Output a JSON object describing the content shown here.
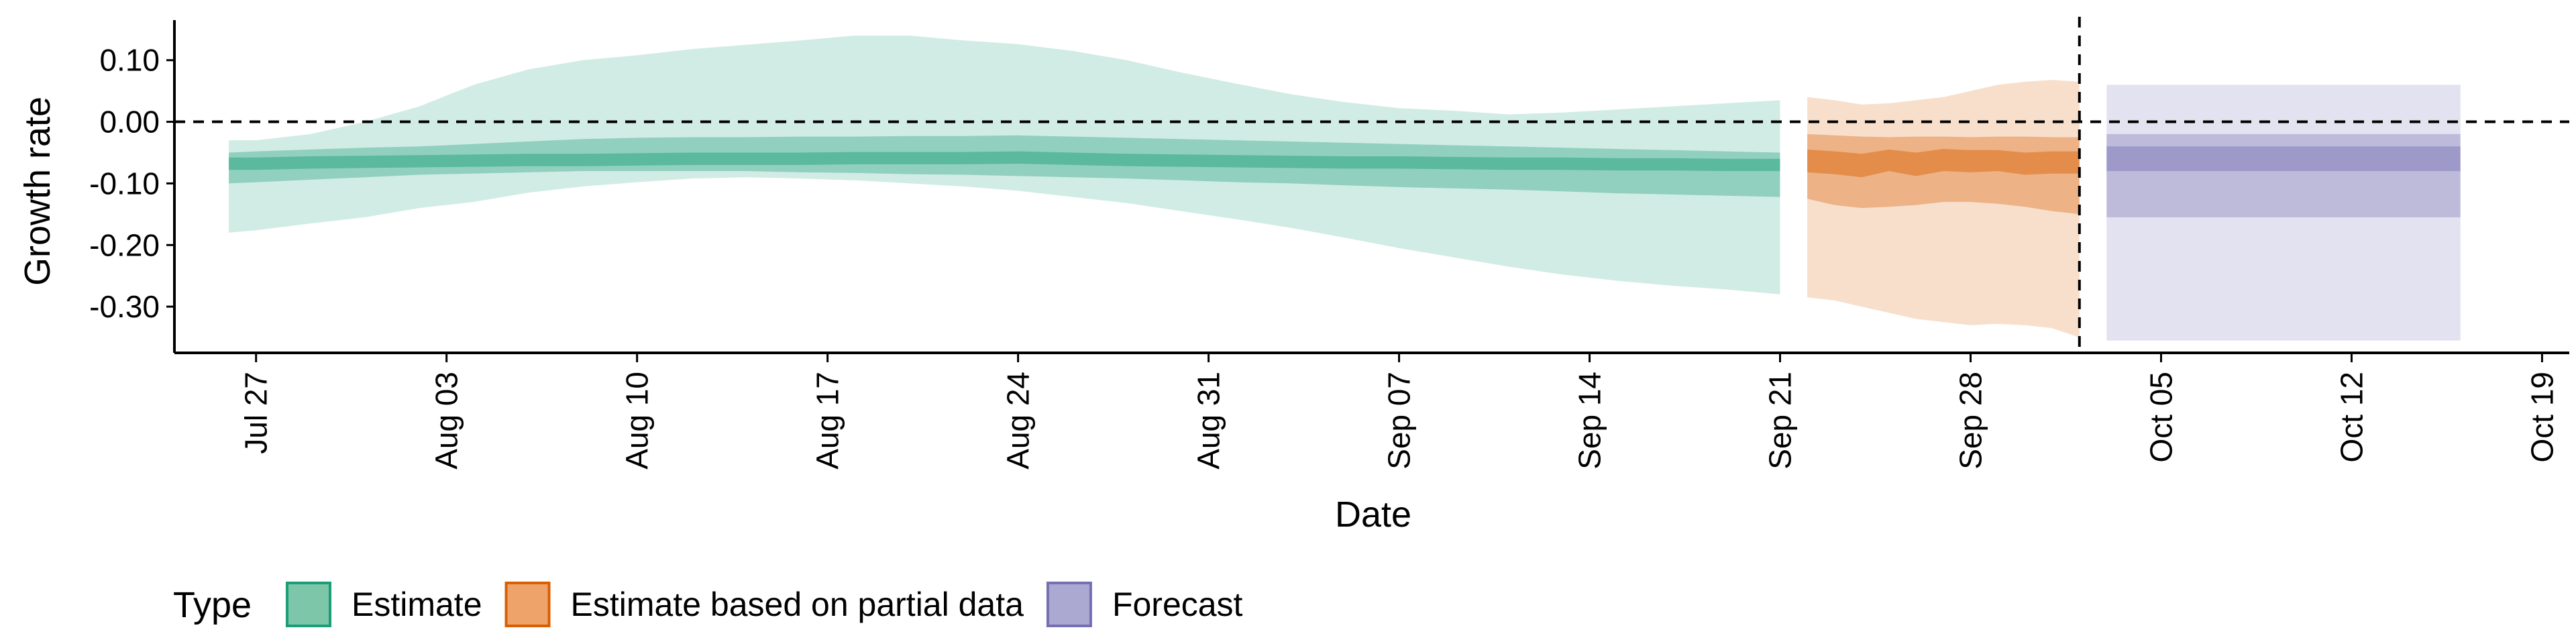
{
  "chart_data": {
    "type": "area",
    "xlabel": "Date",
    "ylabel": "Growth rate",
    "x_start": "Jul 24",
    "x_end": "Oct 20",
    "x_ticks": [
      {
        "date": "Jul 27",
        "label": "Jul 27"
      },
      {
        "date": "Aug 03",
        "label": "Aug 03"
      },
      {
        "date": "Aug 10",
        "label": "Aug 10"
      },
      {
        "date": "Aug 17",
        "label": "Aug 17"
      },
      {
        "date": "Aug 24",
        "label": "Aug 24"
      },
      {
        "date": "Aug 31",
        "label": "Aug 31"
      },
      {
        "date": "Sep 07",
        "label": "Sep 07"
      },
      {
        "date": "Sep 14",
        "label": "Sep 14"
      },
      {
        "date": "Sep 21",
        "label": "Sep 21"
      },
      {
        "date": "Sep 28",
        "label": "Sep 28"
      },
      {
        "date": "Oct 05",
        "label": "Oct 05"
      },
      {
        "date": "Oct 12",
        "label": "Oct 12"
      },
      {
        "date": "Oct 19",
        "label": "Oct 19"
      }
    ],
    "ylim": [
      -0.375,
      0.165
    ],
    "y_ticks": [
      {
        "value": 0.1,
        "label": "0.10"
      },
      {
        "value": 0.0,
        "label": "0.00"
      },
      {
        "value": -0.1,
        "label": "-0.10"
      },
      {
        "value": -0.2,
        "label": "-0.20"
      },
      {
        "value": -0.3,
        "label": "-0.30"
      }
    ],
    "hline_y": 0,
    "vline_x": "Oct 02",
    "grid": false,
    "legend": {
      "title": "Type",
      "placement": "bottom-left",
      "entries": [
        {
          "label": "Estimate",
          "fill": "#7dc6a9",
          "stroke": "#1b9e77"
        },
        {
          "label": "Estimate based on partial data",
          "fill": "#eea36a",
          "stroke": "#d95f02"
        },
        {
          "label": "Forecast",
          "fill": "#aba8d2",
          "stroke": "#7570b3"
        }
      ]
    },
    "series": [
      {
        "name": "Estimate",
        "color": "#1b9e77",
        "x": [
          "Jul 26",
          "Jul 27",
          "Jul 29",
          "Jul 31",
          "Aug 02",
          "Aug 04",
          "Aug 06",
          "Aug 08",
          "Aug 10",
          "Aug 12",
          "Aug 14",
          "Aug 16",
          "Aug 18",
          "Aug 20",
          "Aug 22",
          "Aug 24",
          "Aug 26",
          "Aug 28",
          "Aug 30",
          "Sep 01",
          "Sep 03",
          "Sep 05",
          "Sep 07",
          "Sep 09",
          "Sep 11",
          "Sep 13",
          "Sep 15",
          "Sep 17",
          "Sep 19",
          "Sep 21"
        ],
        "upper90": [
          -0.03,
          -0.03,
          -0.02,
          0.0,
          0.025,
          0.06,
          0.085,
          0.1,
          0.108,
          0.118,
          0.125,
          0.132,
          0.14,
          0.14,
          0.132,
          0.126,
          0.115,
          0.1,
          0.08,
          0.062,
          0.045,
          0.032,
          0.022,
          0.018,
          0.012,
          0.015,
          0.02,
          0.025,
          0.03,
          0.035
        ],
        "upper50": [
          -0.05,
          -0.048,
          -0.045,
          -0.042,
          -0.04,
          -0.036,
          -0.032,
          -0.028,
          -0.026,
          -0.025,
          -0.025,
          -0.024,
          -0.024,
          -0.023,
          -0.023,
          -0.022,
          -0.024,
          -0.026,
          -0.028,
          -0.03,
          -0.032,
          -0.034,
          -0.036,
          -0.038,
          -0.04,
          -0.042,
          -0.044,
          -0.046,
          -0.048,
          -0.05
        ],
        "upper20": [
          -0.058,
          -0.058,
          -0.056,
          -0.055,
          -0.054,
          -0.053,
          -0.052,
          -0.052,
          -0.051,
          -0.05,
          -0.05,
          -0.05,
          -0.049,
          -0.049,
          -0.049,
          -0.048,
          -0.05,
          -0.052,
          -0.053,
          -0.054,
          -0.055,
          -0.056,
          -0.056,
          -0.057,
          -0.058,
          -0.058,
          -0.059,
          -0.059,
          -0.06,
          -0.06
        ],
        "lower20": [
          -0.078,
          -0.078,
          -0.076,
          -0.075,
          -0.074,
          -0.073,
          -0.072,
          -0.072,
          -0.071,
          -0.07,
          -0.07,
          -0.07,
          -0.069,
          -0.069,
          -0.069,
          -0.068,
          -0.07,
          -0.072,
          -0.073,
          -0.074,
          -0.075,
          -0.076,
          -0.076,
          -0.077,
          -0.078,
          -0.078,
          -0.079,
          -0.079,
          -0.08,
          -0.08
        ],
        "lower50": [
          -0.1,
          -0.098,
          -0.094,
          -0.09,
          -0.086,
          -0.084,
          -0.082,
          -0.08,
          -0.08,
          -0.08,
          -0.08,
          -0.082,
          -0.083,
          -0.085,
          -0.086,
          -0.088,
          -0.09,
          -0.092,
          -0.095,
          -0.098,
          -0.1,
          -0.103,
          -0.106,
          -0.108,
          -0.11,
          -0.113,
          -0.116,
          -0.118,
          -0.12,
          -0.122
        ],
        "lower90": [
          -0.18,
          -0.176,
          -0.165,
          -0.155,
          -0.14,
          -0.13,
          -0.115,
          -0.105,
          -0.098,
          -0.092,
          -0.09,
          -0.092,
          -0.095,
          -0.1,
          -0.105,
          -0.112,
          -0.122,
          -0.132,
          -0.145,
          -0.158,
          -0.172,
          -0.188,
          -0.205,
          -0.22,
          -0.235,
          -0.248,
          -0.258,
          -0.266,
          -0.272,
          -0.28
        ]
      },
      {
        "name": "Estimate based on partial data",
        "color": "#d95f02",
        "x": [
          "Sep 22",
          "Sep 23",
          "Sep 24",
          "Sep 25",
          "Sep 26",
          "Sep 27",
          "Sep 28",
          "Sep 29",
          "Sep 30",
          "Oct 01",
          "Oct 02"
        ],
        "upper90": [
          0.04,
          0.035,
          0.028,
          0.03,
          0.035,
          0.04,
          0.05,
          0.06,
          0.065,
          0.068,
          0.065
        ],
        "upper50": [
          -0.02,
          -0.022,
          -0.024,
          -0.025,
          -0.024,
          -0.024,
          -0.025,
          -0.024,
          -0.024,
          -0.025,
          -0.025
        ],
        "upper20": [
          -0.045,
          -0.048,
          -0.052,
          -0.045,
          -0.05,
          -0.044,
          -0.046,
          -0.046,
          -0.05,
          -0.048,
          -0.048
        ],
        "lower20": [
          -0.082,
          -0.085,
          -0.09,
          -0.08,
          -0.088,
          -0.08,
          -0.082,
          -0.08,
          -0.086,
          -0.084,
          -0.084
        ],
        "lower50": [
          -0.125,
          -0.135,
          -0.14,
          -0.138,
          -0.135,
          -0.13,
          -0.13,
          -0.133,
          -0.138,
          -0.145,
          -0.15
        ],
        "lower90": [
          -0.285,
          -0.29,
          -0.3,
          -0.31,
          -0.32,
          -0.325,
          -0.33,
          -0.328,
          -0.33,
          -0.335,
          -0.35
        ]
      },
      {
        "name": "Forecast",
        "color": "#7570b3",
        "x": [
          "Oct 03",
          "Oct 16"
        ],
        "upper90": [
          0.06,
          0.06
        ],
        "upper50": [
          -0.02,
          -0.02
        ],
        "upper20": [
          -0.04,
          -0.04
        ],
        "lower20": [
          -0.08,
          -0.08
        ],
        "lower50": [
          -0.155,
          -0.155
        ],
        "lower90": [
          -0.355,
          -0.355
        ]
      }
    ]
  }
}
